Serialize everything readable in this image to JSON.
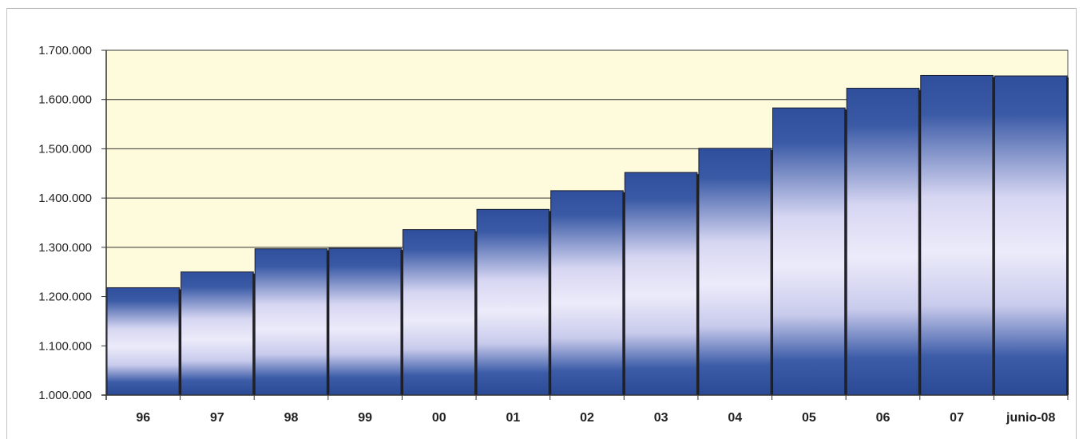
{
  "chart_data": {
    "type": "bar",
    "categories": [
      "96",
      "97",
      "98",
      "99",
      "00",
      "01",
      "02",
      "03",
      "04",
      "05",
      "06",
      "07",
      "junio-08"
    ],
    "values": [
      1218000,
      1250000,
      1297000,
      1298000,
      1336000,
      1377000,
      1415000,
      1452000,
      1501000,
      1583000,
      1623000,
      1649000,
      1648000
    ],
    "ylim": [
      1000000,
      1700000
    ],
    "yticks": [
      1000000,
      1100000,
      1200000,
      1300000,
      1400000,
      1500000,
      1600000,
      1700000
    ],
    "ytick_labels": [
      "1.000.000",
      "1.100.000",
      "1.200.000",
      "1.300.000",
      "1.400.000",
      "1.500.000",
      "1.600.000",
      "1.700.000"
    ],
    "title": "",
    "xlabel": "",
    "ylabel": "",
    "grid": true,
    "legend": "none",
    "colors": {
      "plot_background": "#fdfbdc",
      "bar_dark": "#2f4f9c",
      "bar_light": "#ecebfa",
      "bar_outline": "#1a1a2e",
      "gridline": "#333333"
    }
  }
}
